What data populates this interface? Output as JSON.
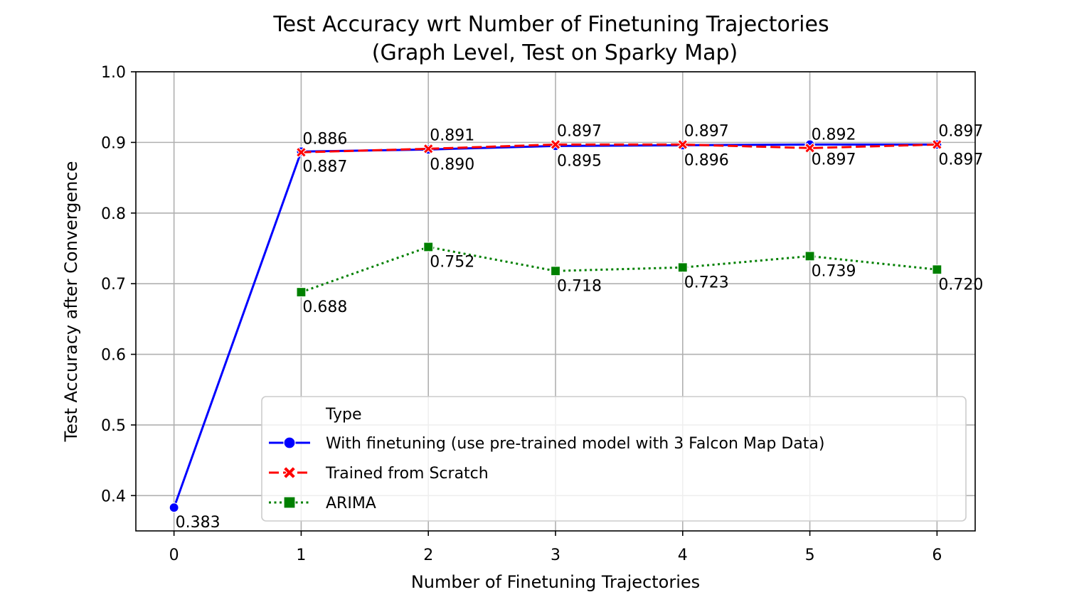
{
  "chart_data": {
    "type": "line",
    "title": "Test Accuracy wrt Number of Finetuning Trajectories",
    "subtitle": "(Graph Level, Test on Sparky Map)",
    "xlabel": "Number of Finetuning Trajectories",
    "ylabel": "Test Accuracy after Convergence",
    "xlim": [
      -0.3,
      6.3
    ],
    "ylim": [
      0.35,
      1.0
    ],
    "x_ticks": [
      "0",
      "1",
      "2",
      "3",
      "4",
      "5",
      "6"
    ],
    "y_ticks": [
      "0.4",
      "0.5",
      "0.6",
      "0.7",
      "0.8",
      "0.9",
      "1.0"
    ],
    "grid": true,
    "legend": {
      "title": "Type",
      "position": "lower-right"
    },
    "series": [
      {
        "name": "With finetuning (use pre-trained model with 3 Falcon Map Data)",
        "color": "#0000ff",
        "line_style": "solid",
        "marker": "circle",
        "x": [
          0,
          1,
          2,
          3,
          4,
          5,
          6
        ],
        "y": [
          0.383,
          0.887,
          0.89,
          0.895,
          0.896,
          0.897,
          0.897
        ],
        "labels": [
          "0.383",
          "0.887",
          "0.890",
          "0.895",
          "0.896",
          "0.897",
          "0.897"
        ],
        "label_position": "below"
      },
      {
        "name": "Trained from Scratch",
        "color": "#ff0000",
        "line_style": "dashed",
        "marker": "x",
        "x": [
          1,
          2,
          3,
          4,
          5,
          6
        ],
        "y": [
          0.886,
          0.891,
          0.897,
          0.897,
          0.892,
          0.897
        ],
        "labels": [
          "0.886",
          "0.891",
          "0.897",
          "0.897",
          "0.892",
          "0.897"
        ],
        "label_position": "above"
      },
      {
        "name": "ARIMA",
        "color": "#008000",
        "line_style": "dotted",
        "marker": "square",
        "x": [
          1,
          2,
          3,
          4,
          5,
          6
        ],
        "y": [
          0.688,
          0.752,
          0.718,
          0.723,
          0.739,
          0.72
        ],
        "labels": [
          "0.688",
          "0.752",
          "0.718",
          "0.723",
          "0.739",
          "0.720"
        ],
        "label_position": "below"
      }
    ]
  }
}
